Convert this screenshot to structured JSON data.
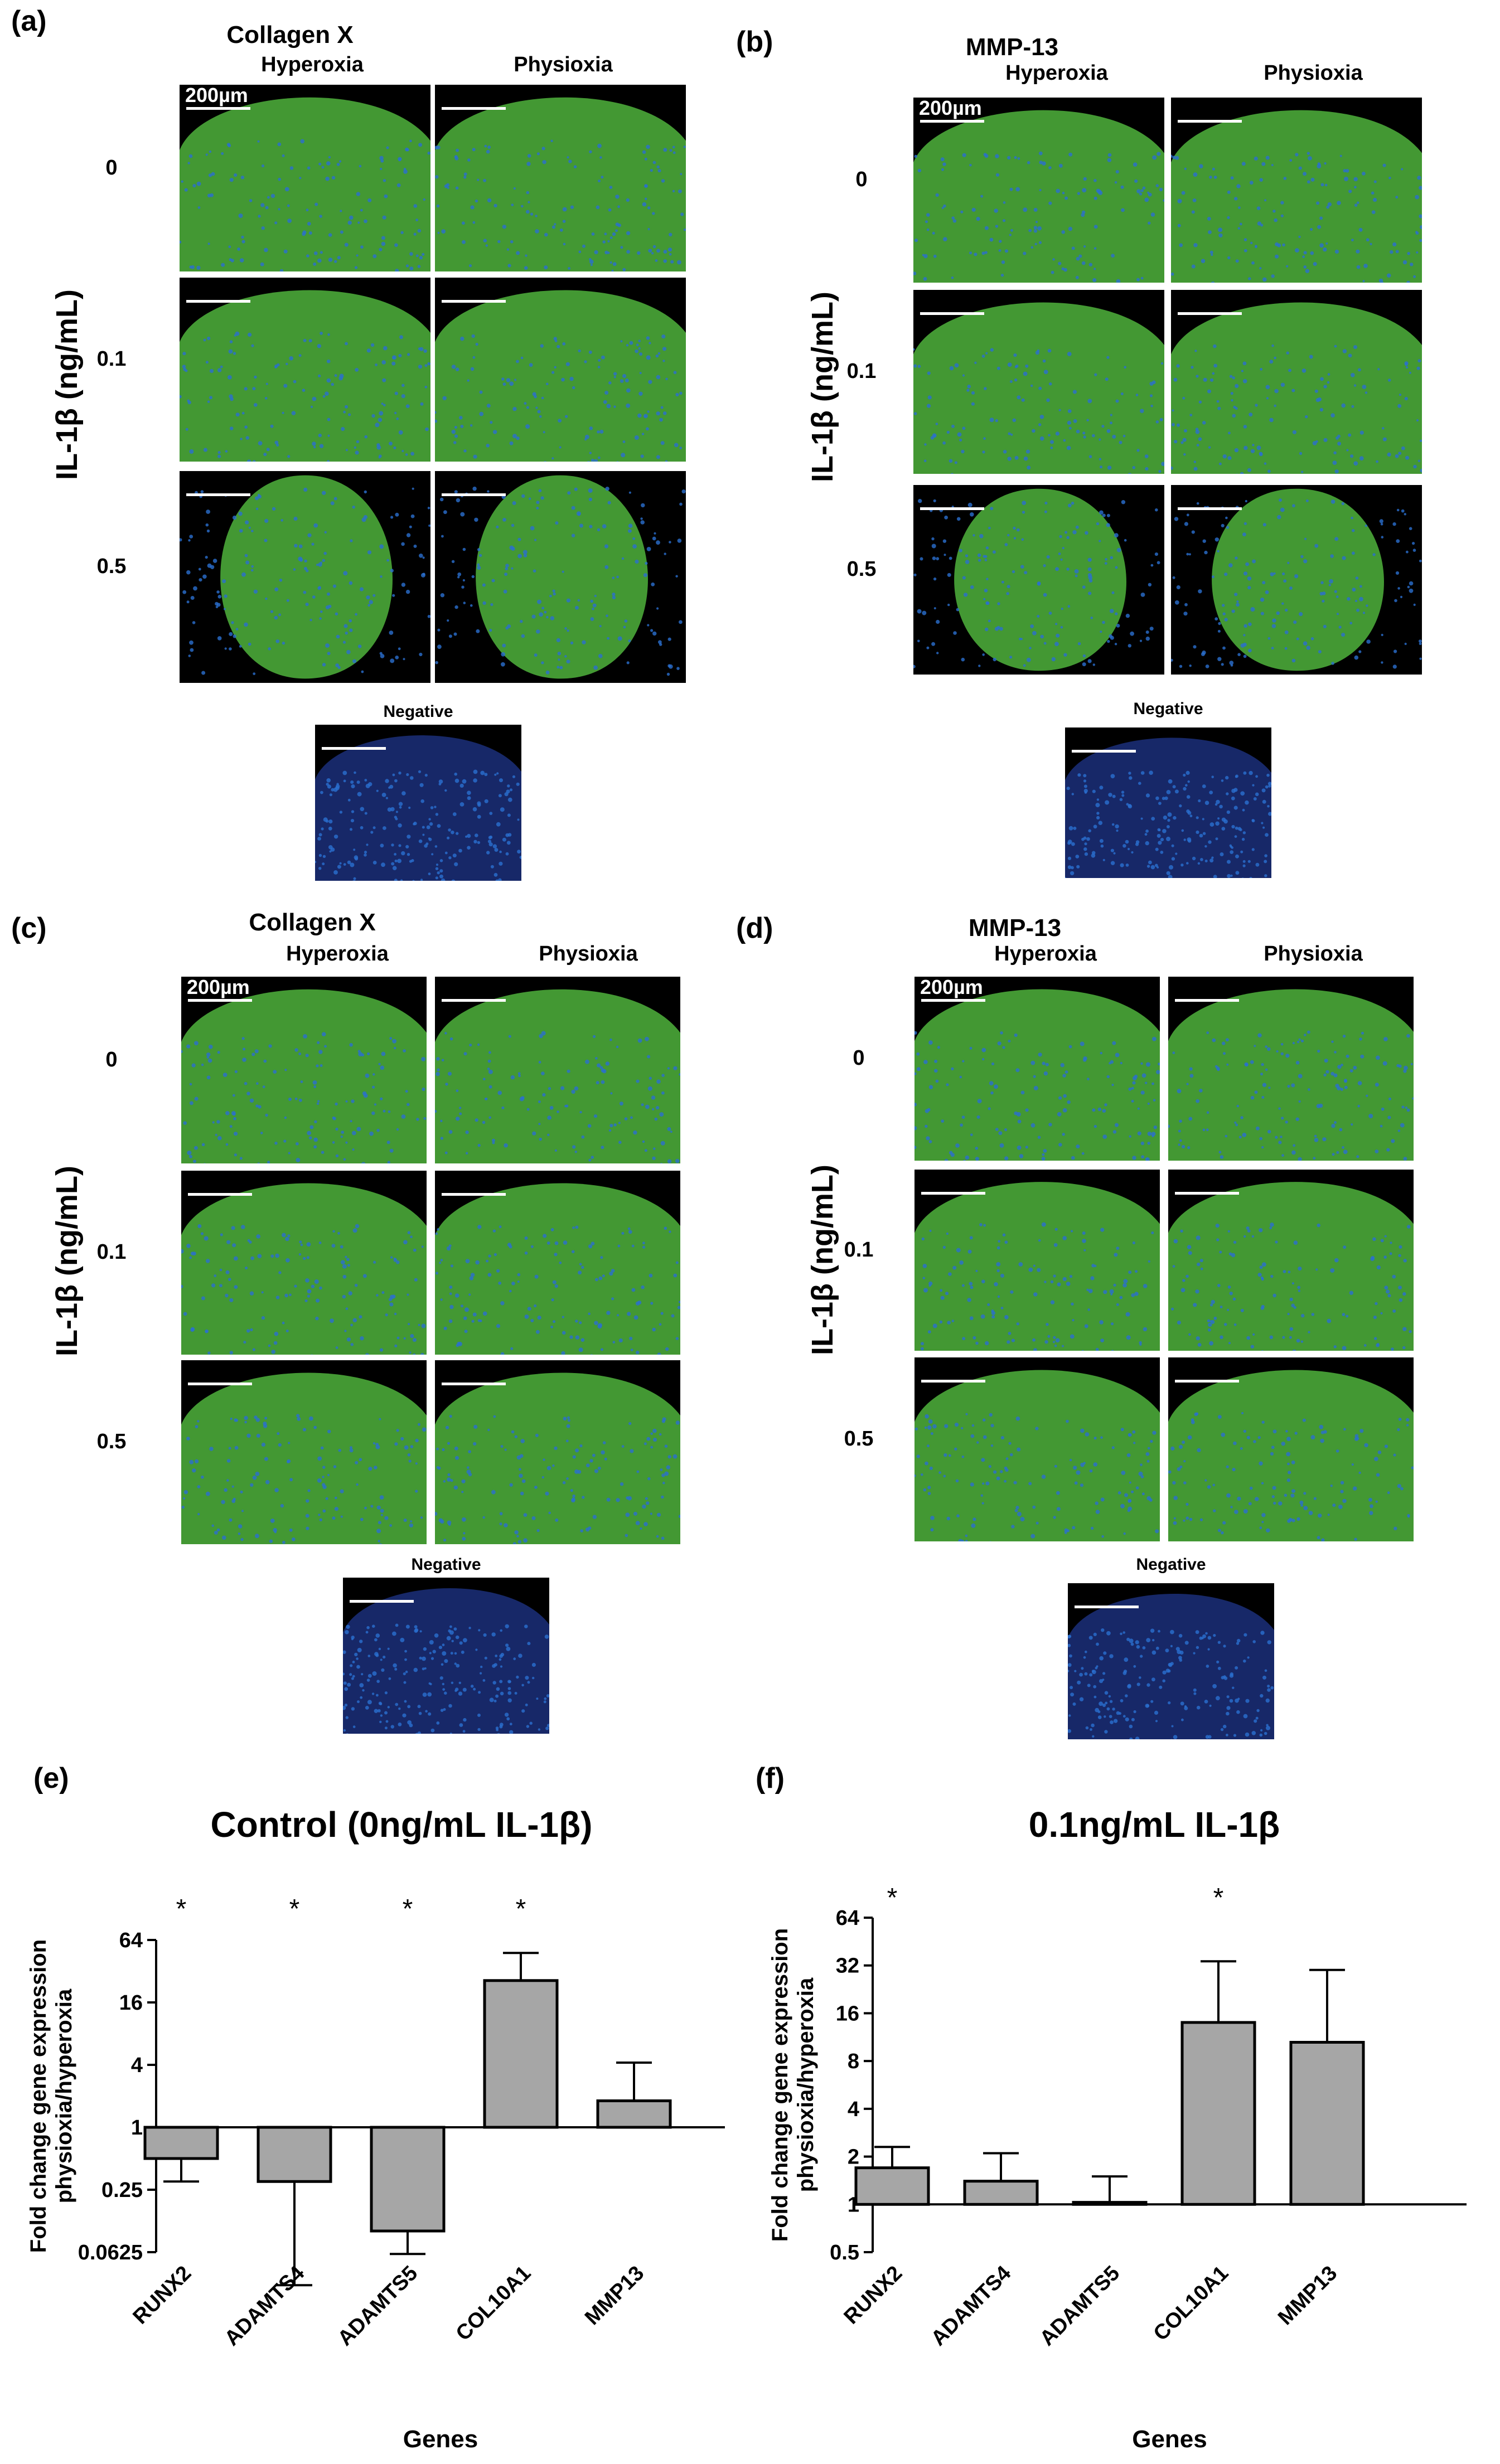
{
  "panels": [
    {
      "label": "(a)",
      "title": "Collagen X",
      "left": "Hyperoxia",
      "right": "Physioxia",
      "rows": [
        "0",
        "0.1",
        "0.5"
      ],
      "ylabel": "IL-1β (ng/mL)",
      "neg": "Negative",
      "scale": "200µm"
    },
    {
      "label": "(b)",
      "title": "MMP-13",
      "left": "Hyperoxia",
      "right": "Physioxia",
      "rows": [
        "0",
        "0.1",
        "0.5"
      ],
      "ylabel": "IL-1β (ng/mL)",
      "neg": "Negative",
      "scale": "200µm"
    },
    {
      "label": "(c)",
      "title": "Collagen X",
      "left": "Hyperoxia",
      "right": "Physioxia",
      "rows": [
        "0",
        "0.1",
        "0.5"
      ],
      "ylabel": "IL-1β (ng/mL)",
      "neg": "Negative",
      "scale": "200µm"
    },
    {
      "label": "(d)",
      "title": "MMP-13",
      "left": "Hyperoxia",
      "right": "Physioxia",
      "rows": [
        "0",
        "0.1",
        "0.5"
      ],
      "ylabel": "IL-1β (ng/mL)",
      "neg": "Negative",
      "scale": "200µm"
    }
  ],
  "chart_data": [
    {
      "label": "(e)",
      "type": "bar",
      "title": "Control (0ng/mL IL-1β)",
      "ylabel": "Fold change gene expression physioxia/hyperoxia",
      "ylabel_lines": [
        "Fold change gene expression",
        "physioxia/hyperoxia"
      ],
      "xlabel": "Genes",
      "scale": "log2",
      "ylim": [
        0.0625,
        64
      ],
      "yticks": [
        64,
        16,
        4,
        1,
        0.25,
        0.0625
      ],
      "ytick_labels": [
        "64",
        "16",
        "4",
        "1",
        "0.25",
        "0.0625"
      ],
      "baseline": 1,
      "categories": [
        "RUNX2",
        "ADAMTS4",
        "ADAMTS5",
        "COL10A1",
        "MMP13"
      ],
      "values": [
        0.5,
        0.3,
        0.1,
        26,
        1.8
      ],
      "errors_to": [
        0.3,
        0.03,
        0.06,
        48,
        4.2
      ],
      "significant": [
        "*",
        "*",
        "*",
        "*",
        ""
      ]
    },
    {
      "label": "(f)",
      "type": "bar",
      "title": "0.1ng/mL IL-1β",
      "ylabel": "Fold change gene expression physioxia/hyperoxia",
      "ylabel_lines": [
        "Fold change gene expression",
        "physioxia/hyperoxia"
      ],
      "xlabel": "Genes",
      "scale": "log2",
      "ylim": [
        0.5,
        64
      ],
      "yticks": [
        64,
        32,
        16,
        8,
        4,
        2,
        1,
        0.5
      ],
      "ytick_labels": [
        "64",
        "32",
        "16",
        "8",
        "4",
        "2",
        "1",
        "0.5"
      ],
      "baseline": 1,
      "categories": [
        "RUNX2",
        "ADAMTS4",
        "ADAMTS5",
        "COL10A1",
        "MMP13"
      ],
      "values": [
        1.7,
        1.4,
        1.03,
        14,
        10.5
      ],
      "errors_to": [
        2.3,
        2.1,
        1.5,
        34,
        30
      ],
      "significant": [
        "*",
        "",
        "",
        "*",
        ""
      ]
    }
  ],
  "colors": {
    "bar": "#a6a6a6",
    "stroke": "#000000",
    "tissue": "#4aa838",
    "nuclei": "#2a6fd0",
    "bg": "#000000"
  }
}
